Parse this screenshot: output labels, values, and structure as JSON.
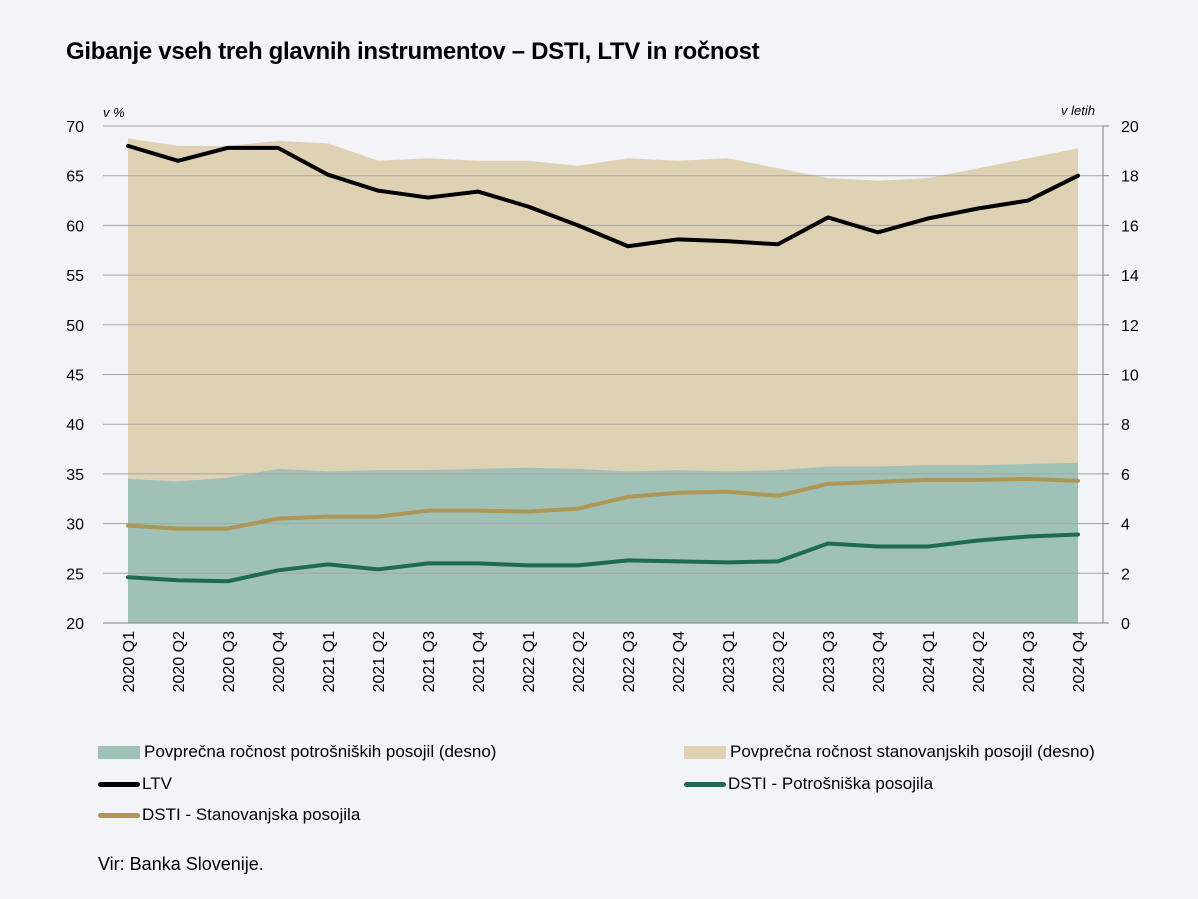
{
  "title": "Gibanje vseh treh glavnih instrumentov – DSTI, LTV in ročnost",
  "source": "Vir: Banka Slovenije.",
  "chart_data": {
    "type": "line",
    "title": "Gibanje vseh treh glavnih instrumentov – DSTI, LTV in ročnost",
    "left_axis": {
      "unit_label": "v %",
      "range": [
        20,
        70
      ],
      "ticks": [
        20,
        25,
        30,
        35,
        40,
        45,
        50,
        55,
        60,
        65,
        70
      ]
    },
    "right_axis": {
      "unit_label": "v letih",
      "range": [
        0,
        20
      ],
      "ticks": [
        0,
        2,
        4,
        6,
        8,
        10,
        12,
        14,
        16,
        18,
        20
      ]
    },
    "categories": [
      "2020 Q1",
      "2020 Q2",
      "2020 Q3",
      "2020 Q4",
      "2021 Q1",
      "2021 Q2",
      "2021 Q3",
      "2021 Q4",
      "2022 Q1",
      "2022 Q2",
      "2022 Q3",
      "2022 Q4",
      "2023 Q1",
      "2023 Q2",
      "2023 Q3",
      "2023 Q4",
      "2024 Q1",
      "2024 Q2",
      "2024 Q3",
      "2024 Q4"
    ],
    "series": [
      {
        "key": "housing_maturity",
        "name": "Povprečna ročnost stanovanjskih posojil (desno)",
        "kind": "area",
        "axis": "right",
        "color": "#dfd2b4",
        "values": [
          19.5,
          19.2,
          19.2,
          19.4,
          19.3,
          18.6,
          18.7,
          18.6,
          18.6,
          18.4,
          18.7,
          18.6,
          18.7,
          18.3,
          17.9,
          17.8,
          17.9,
          18.3,
          18.7,
          19.1
        ]
      },
      {
        "key": "consumer_maturity",
        "name": "Povprečna ročnost potrošniških posojil (desno)",
        "kind": "area",
        "axis": "right",
        "color": "#9fc1b6",
        "values": [
          5.8,
          5.7,
          5.85,
          6.2,
          6.1,
          6.15,
          6.15,
          6.2,
          6.25,
          6.2,
          6.1,
          6.15,
          6.1,
          6.15,
          6.3,
          6.3,
          6.35,
          6.35,
          6.4,
          6.45
        ]
      },
      {
        "key": "ltv",
        "name": "LTV",
        "kind": "line",
        "axis": "left",
        "color": "#000000",
        "values": [
          68.0,
          66.5,
          67.8,
          67.8,
          65.1,
          63.5,
          62.8,
          63.4,
          61.9,
          60.0,
          57.9,
          58.6,
          58.4,
          58.1,
          60.8,
          59.3,
          60.7,
          61.7,
          62.5,
          65.0
        ]
      },
      {
        "key": "dsti_consumer",
        "name": "DSTI - Potrošniška posojila",
        "kind": "line",
        "axis": "left",
        "color": "#1e6b52",
        "values": [
          24.6,
          24.3,
          24.2,
          25.3,
          25.9,
          25.4,
          26.0,
          26.0,
          25.8,
          25.8,
          26.3,
          26.2,
          26.1,
          26.2,
          28.0,
          27.7,
          27.7,
          28.3,
          28.7,
          28.9
        ]
      },
      {
        "key": "dsti_housing",
        "name": "DSTI - Stanovanjska posojila",
        "kind": "line",
        "axis": "left",
        "color": "#ad9656",
        "values": [
          29.8,
          29.5,
          29.5,
          30.5,
          30.7,
          30.7,
          31.3,
          31.3,
          31.2,
          31.5,
          32.7,
          33.1,
          33.2,
          32.8,
          34.0,
          34.2,
          34.4,
          34.4,
          34.5,
          34.3
        ]
      }
    ],
    "grid": "horizontal"
  },
  "legend": [
    {
      "label": "Povprečna ročnost potrošniških posojil (desno)",
      "kind": "area",
      "color": "#9fc1b6"
    },
    {
      "label": "Povprečna ročnost stanovanjskih posojil (desno)",
      "kind": "area",
      "color": "#dfd2b4"
    },
    {
      "label": "LTV",
      "kind": "line",
      "color": "#000000"
    },
    {
      "label": "DSTI - Potrošniška posojila",
      "kind": "line",
      "color": "#1e6b52"
    },
    {
      "label": "DSTI - Stanovanjska posojila",
      "kind": "line",
      "color": "#ad9656"
    }
  ]
}
